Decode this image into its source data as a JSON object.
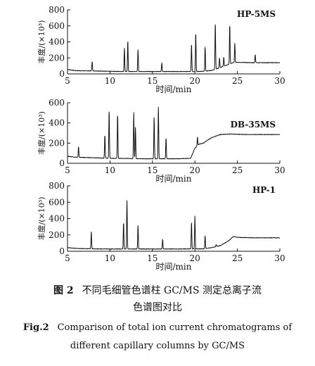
{
  "chart_data": [
    {
      "type": "line",
      "title": "HP-5MS",
      "xlabel": "时间/min",
      "ylabel": "丰度/(×10³)",
      "xlim": [
        5,
        30
      ],
      "ylim": [
        0,
        800
      ],
      "xticks": [
        5,
        10,
        15,
        20,
        25,
        30
      ],
      "yticks": [
        0,
        200,
        400,
        600,
        800
      ],
      "baseline": [
        [
          5,
          55
        ],
        [
          6,
          40
        ],
        [
          8,
          38
        ],
        [
          10,
          32
        ],
        [
          12,
          30
        ],
        [
          14,
          30
        ],
        [
          16,
          30
        ],
        [
          18,
          30
        ],
        [
          20,
          30
        ],
        [
          21,
          32
        ],
        [
          22,
          45
        ],
        [
          23,
          80
        ],
        [
          24,
          120
        ],
        [
          24.5,
          140
        ],
        [
          25,
          145
        ],
        [
          27,
          140
        ],
        [
          29,
          140
        ],
        [
          30,
          140
        ]
      ],
      "peaks": [
        [
          7.9,
          160
        ],
        [
          11.7,
          325
        ],
        [
          12.1,
          420
        ],
        [
          13.3,
          310
        ],
        [
          16.1,
          140
        ],
        [
          19.6,
          375
        ],
        [
          20.1,
          520
        ],
        [
          21.2,
          340
        ],
        [
          22.4,
          645
        ],
        [
          22.9,
          200
        ],
        [
          23.4,
          210
        ],
        [
          24.1,
          620
        ],
        [
          24.7,
          390
        ],
        [
          27.1,
          240
        ]
      ]
    },
    {
      "type": "line",
      "title": "DB-35MS",
      "xlabel": "时间/min",
      "ylabel": "丰度/(×10³)",
      "xlim": [
        5,
        30
      ],
      "ylim": [
        0,
        600
      ],
      "xticks": [
        5,
        10,
        15,
        20,
        25,
        30
      ],
      "yticks": [
        0,
        200,
        400,
        600
      ],
      "baseline": [
        [
          5,
          70
        ],
        [
          6,
          60
        ],
        [
          8,
          55
        ],
        [
          10,
          50
        ],
        [
          14,
          45
        ],
        [
          18,
          45
        ],
        [
          19.5,
          50
        ],
        [
          20,
          150
        ],
        [
          20.5,
          190
        ],
        [
          21,
          200
        ],
        [
          21.5,
          230
        ],
        [
          22,
          255
        ],
        [
          22.5,
          270
        ],
        [
          23,
          285
        ],
        [
          24,
          290
        ],
        [
          26,
          285
        ],
        [
          28,
          285
        ],
        [
          30,
          285
        ]
      ],
      "peaks": [
        [
          6.3,
          165
        ],
        [
          9.4,
          285
        ],
        [
          9.9,
          535
        ],
        [
          10.9,
          490
        ],
        [
          12.8,
          510
        ],
        [
          13.0,
          360
        ],
        [
          15.2,
          460
        ],
        [
          15.7,
          565
        ],
        [
          16.6,
          255
        ],
        [
          20.3,
          260
        ]
      ]
    },
    {
      "type": "line",
      "title": "HP-1",
      "xlabel": "时间/min",
      "ylabel": "丰度/(×10³)",
      "xlim": [
        5,
        30
      ],
      "ylim": [
        0,
        800
      ],
      "xticks": [
        5,
        10,
        15,
        20,
        25,
        30
      ],
      "yticks": [
        0,
        200,
        400,
        600,
        800
      ],
      "baseline": [
        [
          5,
          45
        ],
        [
          6,
          35
        ],
        [
          8,
          30
        ],
        [
          10,
          28
        ],
        [
          14,
          28
        ],
        [
          18,
          28
        ],
        [
          21,
          30
        ],
        [
          22,
          45
        ],
        [
          23,
          70
        ],
        [
          24,
          130
        ],
        [
          24.5,
          180
        ],
        [
          25,
          170
        ],
        [
          27,
          165
        ],
        [
          29,
          165
        ],
        [
          30,
          165
        ]
      ],
      "peaks": [
        [
          7.8,
          240
        ],
        [
          11.6,
          355
        ],
        [
          12.0,
          620
        ],
        [
          13.3,
          320
        ],
        [
          16.2,
          150
        ],
        [
          19.6,
          360
        ],
        [
          20.0,
          435
        ],
        [
          21.2,
          190
        ],
        [
          22.5,
          80
        ]
      ]
    }
  ],
  "caption": {
    "cn_number": "图 2",
    "cn_line1": "不同毛细管色谱柱 GC/MS 测定总离子流",
    "cn_line2": "色谱图对比",
    "en_number": "Fig.2",
    "en_line1": "Comparison of total ion current chromatograms of",
    "en_line2": "different capillary columns by GC/MS"
  }
}
